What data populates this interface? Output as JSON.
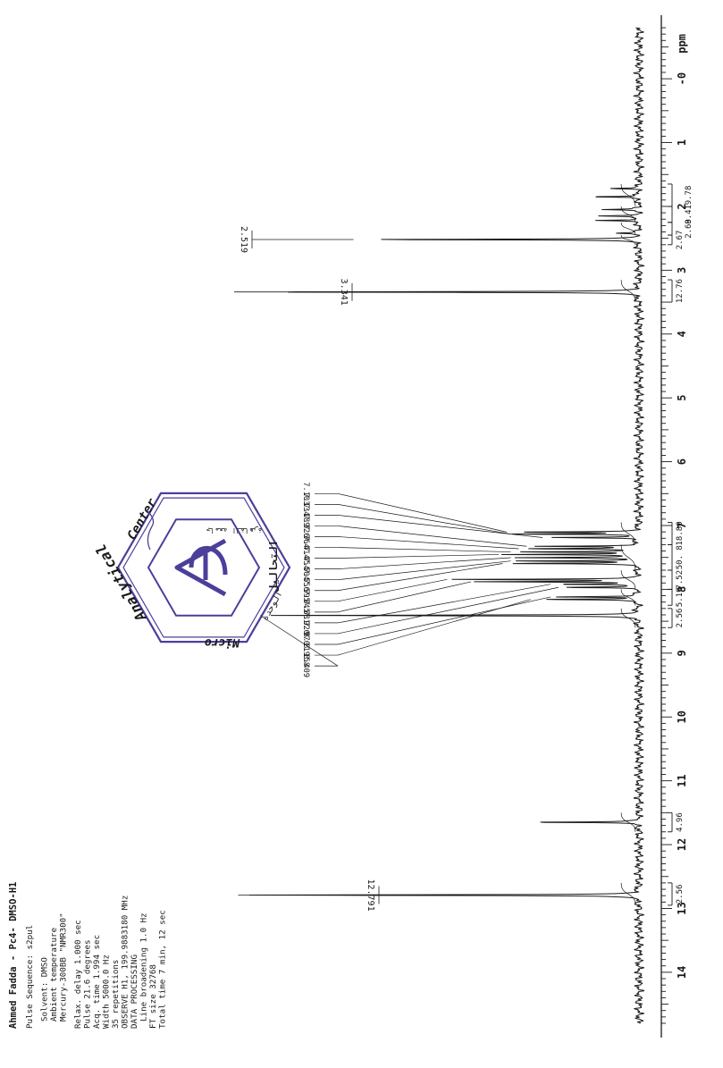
{
  "chart_data": {
    "type": "line",
    "orientation": "rotated-90-clockwise",
    "title": "Ahmed Fadda - Pc4- DMSO-H1",
    "xlabel": "ppm",
    "xlim": [
      14.8,
      -0.8
    ],
    "reversed_axis": true,
    "grid": false,
    "ticks": [
      14,
      13,
      12,
      11,
      10,
      9,
      8,
      7,
      6,
      5,
      4,
      3,
      2,
      1,
      0,
      "ppm"
    ],
    "tick_labels": [
      "14",
      "13",
      "12",
      "11",
      "10",
      "9",
      "8",
      "7",
      "6",
      "5",
      "4",
      "3",
      "2",
      "1",
      "-0",
      "ppm"
    ],
    "peaks_labeled": [
      {
        "ppm": 12.791,
        "label": "12.791",
        "height": 0.99
      },
      {
        "ppm": 3.341,
        "label": "3.341",
        "height": 1.0
      },
      {
        "ppm": 2.519,
        "label": "2.519",
        "height": 0.7
      }
    ],
    "aromatic_labels": [
      "7.103",
      "7.134",
      "7.189",
      "7.326",
      "7.364",
      "7.414",
      "7.454",
      "7.504",
      "7.556",
      "7.595",
      "7.845",
      "7.881",
      "7.920",
      "7.970",
      "8.119",
      "8.158",
      "8.409"
    ],
    "aromatic_peaks": [
      {
        "ppm": 8.409,
        "height": 0.93
      },
      {
        "ppm": 8.158,
        "height": 0.25
      },
      {
        "ppm": 8.119,
        "height": 0.2
      },
      {
        "ppm": 7.97,
        "height": 0.18
      },
      {
        "ppm": 7.92,
        "height": 0.2
      },
      {
        "ppm": 7.881,
        "height": 0.4
      },
      {
        "ppm": 7.845,
        "height": 0.46
      },
      {
        "ppm": 7.595,
        "height": 0.32
      },
      {
        "ppm": 7.556,
        "height": 0.3
      },
      {
        "ppm": 7.504,
        "height": 0.3
      },
      {
        "ppm": 7.454,
        "height": 0.33
      },
      {
        "ppm": 7.414,
        "height": 0.3
      },
      {
        "ppm": 7.364,
        "height": 0.28
      },
      {
        "ppm": 7.326,
        "height": 0.26
      },
      {
        "ppm": 7.189,
        "height": 0.22
      },
      {
        "ppm": 7.134,
        "height": 0.3
      },
      {
        "ppm": 7.103,
        "height": 0.31
      }
    ],
    "other_peaks": [
      {
        "ppm": 11.65,
        "height": 0.28
      },
      {
        "ppm": 2.42,
        "height": 0.06
      },
      {
        "ppm": 2.22,
        "height": 0.12
      },
      {
        "ppm": 2.15,
        "height": 0.1
      },
      {
        "ppm": 2.05,
        "height": 0.09
      },
      {
        "ppm": 1.85,
        "height": 0.13
      },
      {
        "ppm": 1.72,
        "height": 0.07
      }
    ],
    "integrals": [
      {
        "label": "2.56",
        "from": 12.95,
        "to": 12.6
      },
      {
        "label": "4.96",
        "from": 11.8,
        "to": 11.5
      },
      {
        "label": "2.56",
        "from": 8.6,
        "to": 8.3
      },
      {
        "label": "5.19",
        "from": 8.25,
        "to": 8.0
      },
      {
        "label": "7.52",
        "from": 8.0,
        "to": 7.7
      },
      {
        "label": "50. 8",
        "from": 7.7,
        "to": 7.3
      },
      {
        "label": "18.80",
        "from": 7.3,
        "to": 6.95
      },
      {
        "label": "12.76",
        "from": 3.5,
        "to": 3.15
      },
      {
        "label": "2.67",
        "from": 2.6,
        "to": 2.45
      },
      {
        "label": "2.69",
        "from": 2.45,
        "to": 2.25
      },
      {
        "label": "8.41",
        "from": 2.25,
        "to": 2.0
      },
      {
        "label": "9.78",
        "from": 2.0,
        "to": 1.65
      }
    ]
  },
  "parameters": {
    "title": "Ahmed Fadda - Pc4- DMSO-H1",
    "lines": [
      "Pulse Sequence: s2pul",
      "",
      "Solvent: DMSO",
      "Ambient temperature",
      "Mercury-300BB \"NMR300\"",
      "",
      "Relax. delay 1.000 sec",
      "Pulse 21.6 degrees",
      "Acq. time 1.994 sec",
      "Width 5000.0 Hz",
      "35 repetitions",
      "OBSERVE  H1, 199.9883180 MHz",
      "DATA PROCESSING",
      "Line broadening 1.0 Hz",
      "FT size 32768",
      "Total time 7 min, 12 sec"
    ]
  },
  "stamp": {
    "lines": [
      "Micro",
      "Analytical",
      "Center",
      "الوحدة",
      "جامعة القاهرة",
      "التحاليل"
    ],
    "color": "#4b3f9a"
  },
  "colors": {
    "ink": "#1a1a1a",
    "stamp": "#4b3f9a"
  }
}
